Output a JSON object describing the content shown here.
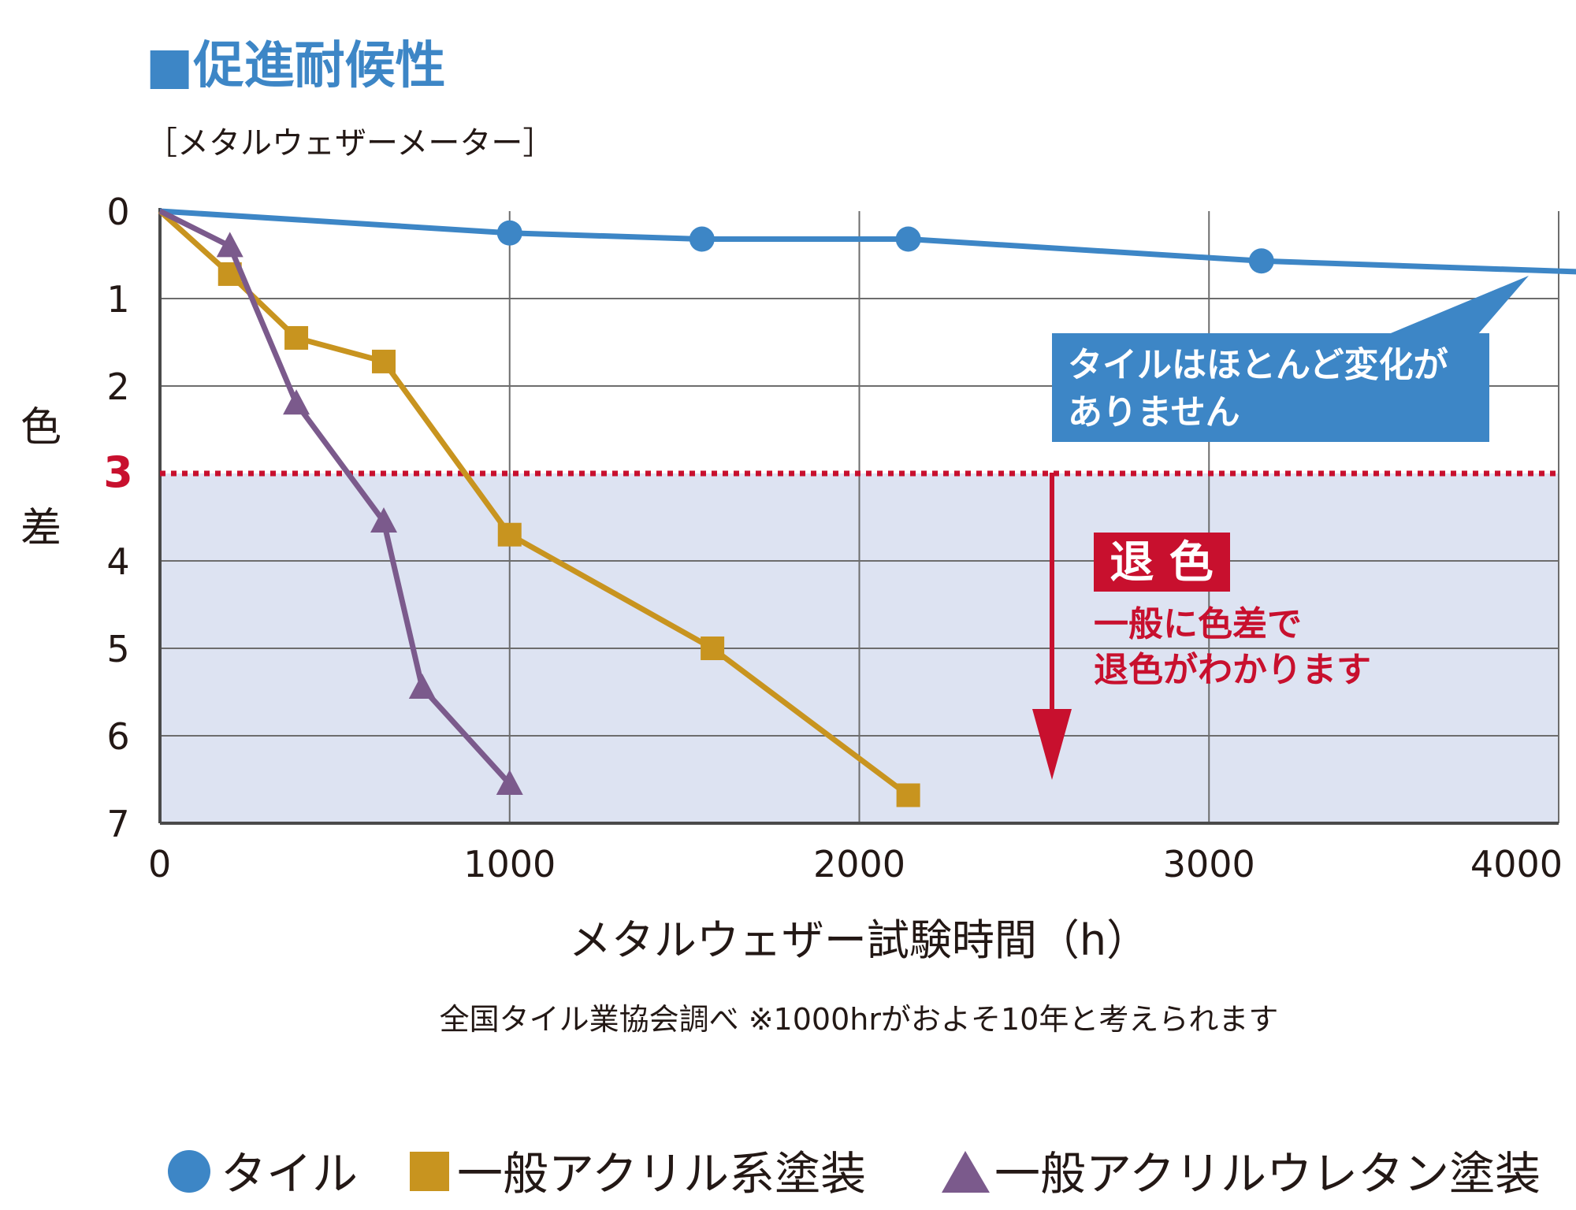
{
  "title": "■促進耐候性",
  "subtitle": "［メタルウェザーメーター］",
  "footnote": "全国タイル業協会調べ ※1000hrがおよそ10年と考えられます",
  "callout": {
    "line1": "タイルはほとんど変化が",
    "line2": "ありません"
  },
  "fade_box": {
    "title": "退 色",
    "line1": "一般に色差で",
    "line2": "退色がわかります"
  },
  "legend": [
    {
      "symbol": "●",
      "label": "タイル"
    },
    {
      "symbol": "■",
      "label": "一般アクリル系塗装"
    },
    {
      "symbol": "▲",
      "label": "一般アクリルウレタン塗装"
    }
  ],
  "colors": {
    "tile": "#3d86c6",
    "acrylic": "#c8941f",
    "urethane": "#7b5a8c",
    "threshold": "#c8102e",
    "shade": "#dde3f2",
    "accent": "#3d86c6"
  },
  "chart_data": {
    "type": "line",
    "title": "",
    "xlabel": "メタルウェザー試験時間（h）",
    "ylabel": "色差",
    "xlim": [
      0,
      4000
    ],
    "ylim": [
      0,
      7
    ],
    "y_reversed": true,
    "grid": true,
    "x_ticks": [
      0,
      1000,
      2000,
      3000,
      4000
    ],
    "x_tick_labels": [
      "0",
      "1000",
      "2000",
      "3000",
      "4000"
    ],
    "y_ticks": [
      0,
      1,
      2,
      3,
      4,
      5,
      6,
      7
    ],
    "y_tick_labels": [
      "0",
      "1",
      "2",
      "3",
      "4",
      "5",
      "6",
      "7"
    ],
    "threshold": {
      "y": 3,
      "label": "3",
      "shaded_below": true
    },
    "series": [
      {
        "name": "タイル",
        "marker": "circle",
        "color": "#3d86c6",
        "points": [
          [
            0,
            0
          ],
          [
            1000,
            0.25
          ],
          [
            1550,
            0.32
          ],
          [
            2140,
            0.32
          ],
          [
            3150,
            0.57
          ],
          [
            4100,
            0.7
          ]
        ]
      },
      {
        "name": "一般アクリル系塗装",
        "marker": "square",
        "color": "#c8941f",
        "points": [
          [
            0,
            0
          ],
          [
            200,
            0.72
          ],
          [
            390,
            1.45
          ],
          [
            640,
            1.72
          ],
          [
            1000,
            3.7
          ],
          [
            1580,
            5.0
          ],
          [
            2140,
            6.68
          ]
        ]
      },
      {
        "name": "一般アクリルウレタン塗装",
        "marker": "triangle",
        "color": "#7b5a8c",
        "points": [
          [
            0,
            0
          ],
          [
            200,
            0.4
          ],
          [
            390,
            2.2
          ],
          [
            640,
            3.55
          ],
          [
            750,
            5.45
          ],
          [
            1000,
            6.55
          ]
        ]
      }
    ]
  }
}
